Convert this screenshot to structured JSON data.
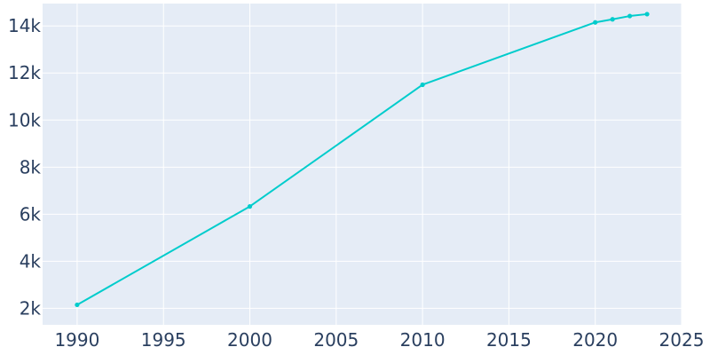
{
  "chart_data": {
    "type": "line",
    "title": "",
    "xlabel": "",
    "ylabel": "",
    "x": [
      1990,
      2000,
      2010,
      2020,
      2021,
      2022,
      2023
    ],
    "series": [
      {
        "values": [
          2150,
          6330,
          11500,
          14150,
          14280,
          14420,
          14500
        ],
        "color": "#00cccc"
      }
    ],
    "xlim": [
      1988,
      2025
    ],
    "ylim": [
      1300,
      14950
    ],
    "x_ticks": [
      1990,
      1995,
      2000,
      2005,
      2010,
      2015,
      2020,
      2025
    ],
    "x_tick_labels": [
      "1990",
      "1995",
      "2000",
      "2005",
      "2010",
      "2015",
      "2020",
      "2025"
    ],
    "y_ticks": [
      2000,
      4000,
      6000,
      8000,
      10000,
      12000,
      14000
    ],
    "y_tick_labels": [
      "2k",
      "4k",
      "6k",
      "8k",
      "10k",
      "12k",
      "14k"
    ],
    "grid": true,
    "legend": "none",
    "colors": {
      "plot_background": "#e5ecf6",
      "grid": "#ffffff",
      "tick_text": "#2a3f5f"
    }
  }
}
